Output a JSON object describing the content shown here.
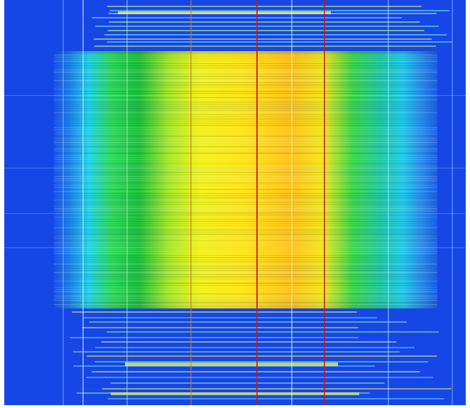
{
  "image": {
    "kind": "spectrogram-waterfall",
    "description_colors": {
      "background_low": "#1646e6",
      "mid_cyan": "#15d8e2",
      "mid_green": "#2fd14a",
      "high_yellow": "#ffe91a",
      "peak_orange": "#ff8c14",
      "marker_red": "#d81a10",
      "frame_white": "#ffffff"
    }
  }
}
